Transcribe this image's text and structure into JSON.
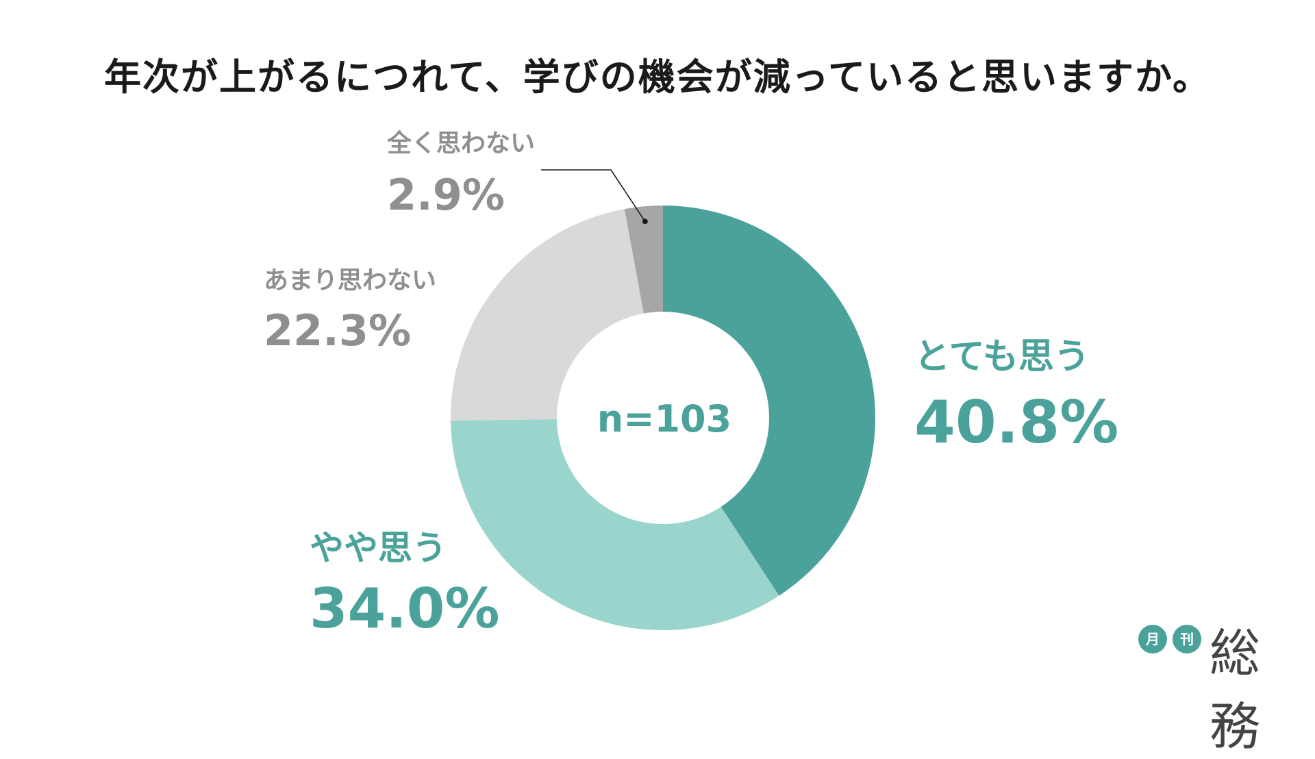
{
  "chart_data": {
    "type": "pie",
    "title": "年次が上がるにつれて、学びの機会が減っていると思いますか。",
    "center_label": "n=103",
    "slices": [
      {
        "label": "とても思う",
        "value": 40.8,
        "display": "40.8%",
        "color": "#4aa29a"
      },
      {
        "label": "やや思う",
        "value": 34.0,
        "display": "34.0%",
        "color": "#9ad5cd"
      },
      {
        "label": "あまり思わない",
        "value": 22.3,
        "display": "22.3%",
        "color": "#d9d9d9"
      },
      {
        "label": "全く思わない",
        "value": 2.9,
        "display": "2.9%",
        "color": "#a6a6a6"
      }
    ],
    "legend": "none"
  },
  "logo": {
    "badge_1": "月",
    "badge_2": "刊",
    "name": "総務"
  }
}
